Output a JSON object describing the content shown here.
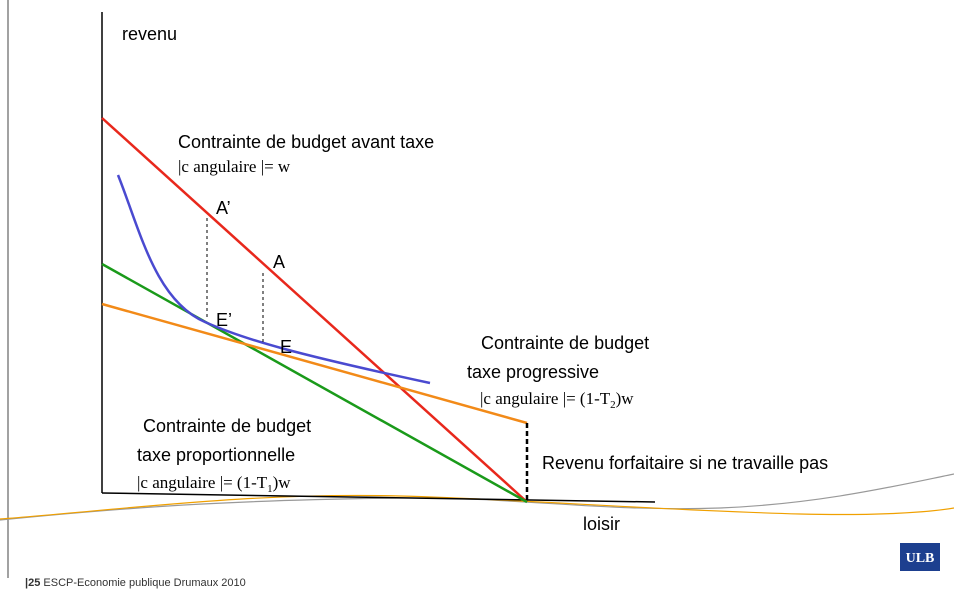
{
  "axes": {
    "y_label": "revenu",
    "x_label": "loisir"
  },
  "labels": {
    "before_tax": {
      "title": "Contrainte de budget avant taxe",
      "slope": "|c angulaire |= w"
    },
    "progressive": {
      "line1": "Contrainte de budget",
      "line2": "taxe progressive",
      "slope": [
        "|c angulaire |= (1-T",
        "2",
        ")w"
      ]
    },
    "proportional": {
      "line1": "Contrainte de budget",
      "line2": "taxe proportionnelle",
      "slope": [
        "|c angulaire |= (1-T",
        "1",
        ")w"
      ]
    },
    "lump_sum": "Revenu forfaitaire si ne travaille pas",
    "points": {
      "a_prime": "A’",
      "a": "A",
      "e_prime": "E’",
      "e": "E"
    }
  },
  "footer": {
    "page": "|25",
    "text": "ESCP-Economie publique Drumaux 2010"
  },
  "logo": "ULB"
}
